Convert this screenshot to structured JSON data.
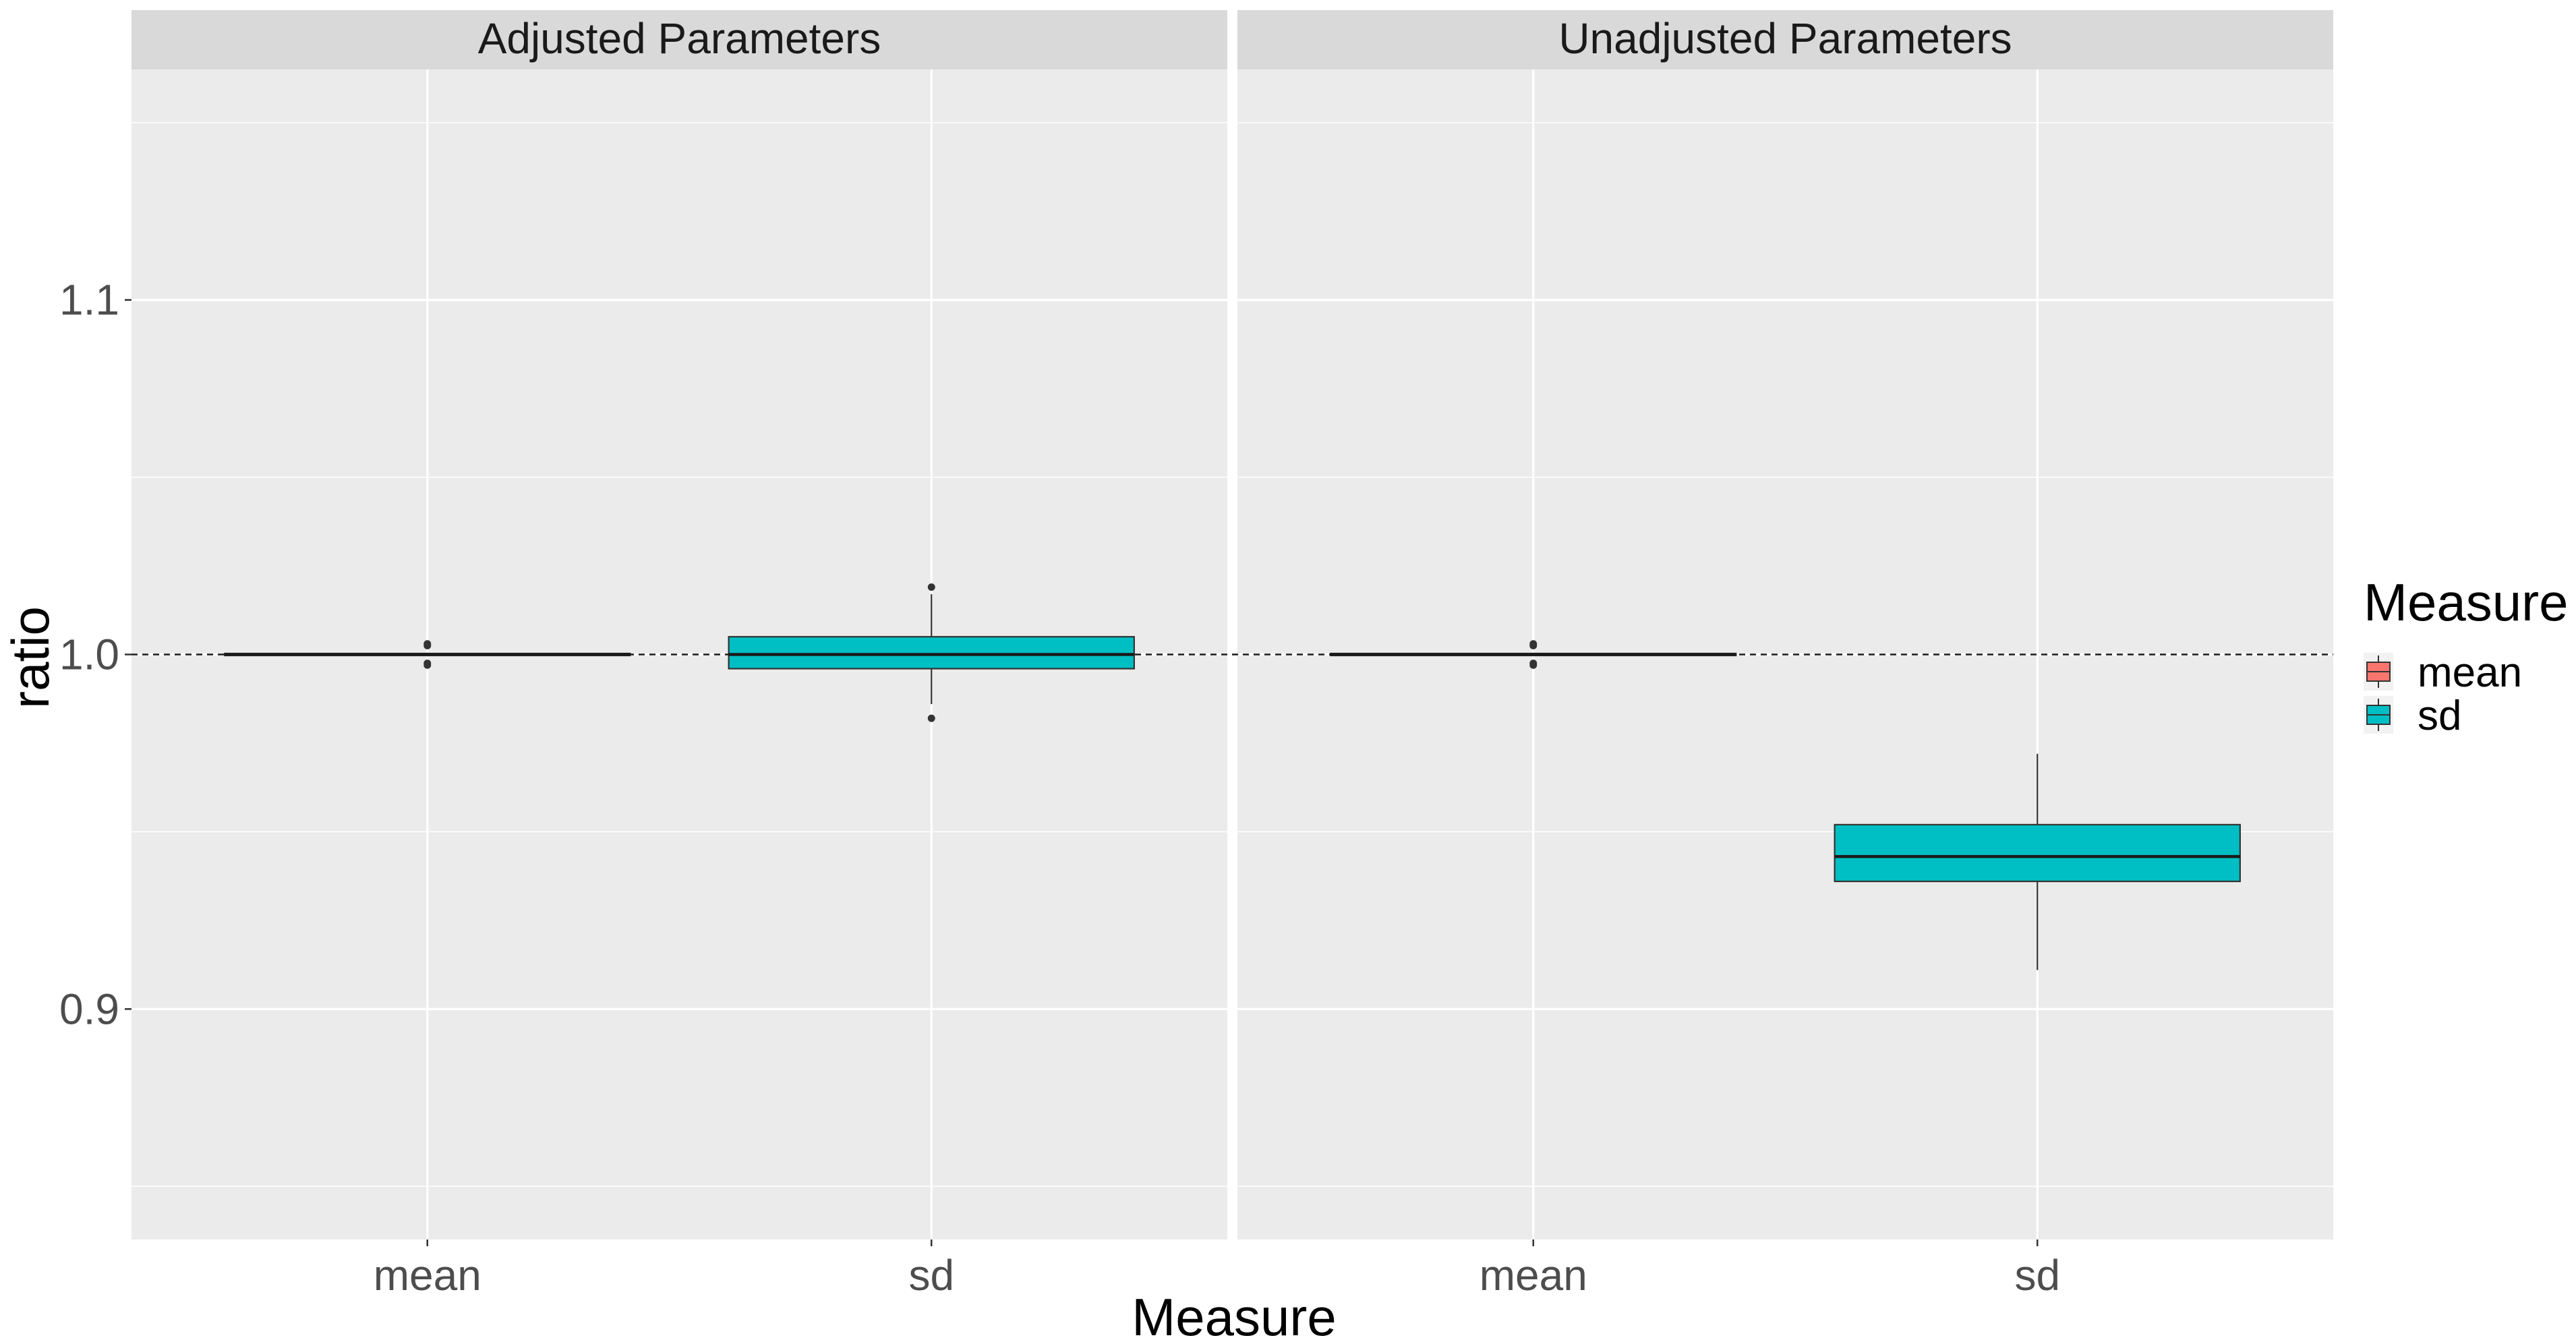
{
  "chart_data": {
    "type": "box",
    "facets": [
      "Adjusted Parameters",
      "Unadjusted Parameters"
    ],
    "categories": [
      "mean",
      "sd"
    ],
    "xlabel": "Measure",
    "ylabel": "ratio",
    "ylim": [
      0.835,
      1.165
    ],
    "yticks": [
      0.9,
      1.0,
      1.1
    ],
    "ytick_labels": [
      "0.9",
      "1.0",
      "1.1"
    ],
    "reference_line": {
      "y": 1.0,
      "style": "dashed"
    },
    "legend": {
      "title": "Measure",
      "position": "right",
      "entries": [
        {
          "label": "mean",
          "color": "#F8766D"
        },
        {
          "label": "sd",
          "color": "#00BFC4"
        }
      ]
    },
    "boxes": [
      {
        "facet": "Adjusted Parameters",
        "category": "mean",
        "color": "#F8766D",
        "min": 0.9995,
        "q1": 0.9999,
        "median": 1.0,
        "q3": 1.0001,
        "max": 1.0005,
        "outliers": [
          1.003,
          1.0025,
          0.997,
          0.9975
        ]
      },
      {
        "facet": "Adjusted Parameters",
        "category": "sd",
        "color": "#00BFC4",
        "min": 0.986,
        "q1": 0.996,
        "median": 1.0,
        "q3": 1.005,
        "max": 1.017,
        "outliers": [
          1.019,
          0.982
        ]
      },
      {
        "facet": "Unadjusted Parameters",
        "category": "mean",
        "color": "#F8766D",
        "min": 0.9995,
        "q1": 0.9999,
        "median": 1.0,
        "q3": 1.0001,
        "max": 1.0005,
        "outliers": [
          1.003,
          1.0025,
          0.997,
          0.9975
        ]
      },
      {
        "facet": "Unadjusted Parameters",
        "category": "sd",
        "color": "#00BFC4",
        "min": 0.911,
        "q1": 0.936,
        "median": 0.943,
        "q3": 0.952,
        "max": 0.972,
        "outliers": []
      }
    ],
    "grid": true,
    "panel_background": "#EBEBEB",
    "strip_background": "#D9D9D9"
  }
}
